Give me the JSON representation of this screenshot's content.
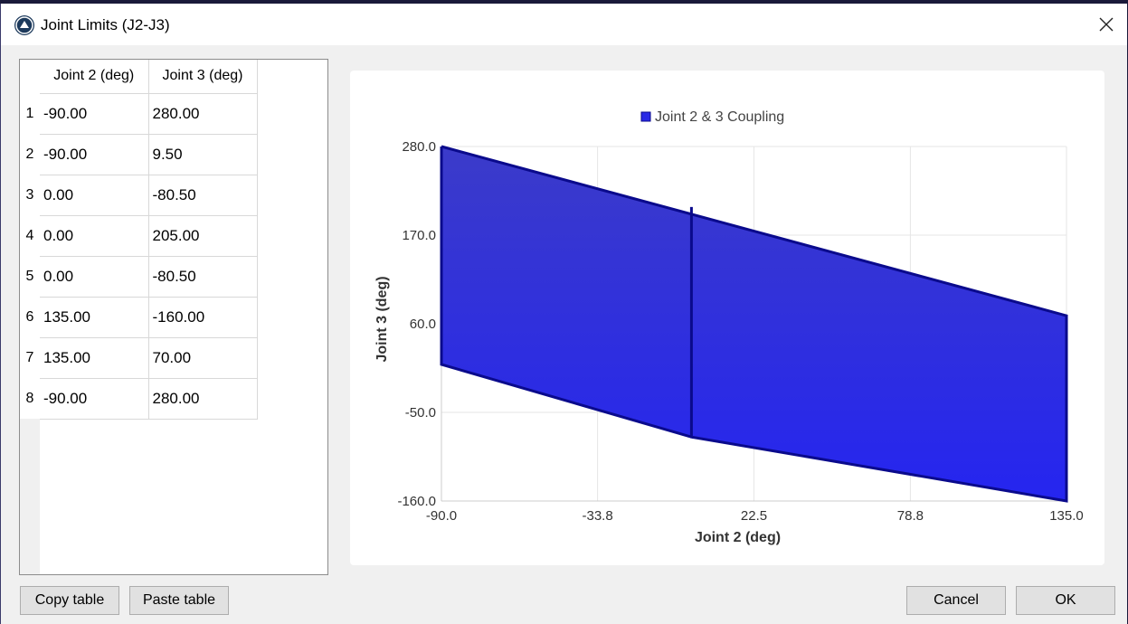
{
  "window": {
    "title": "Joint Limits (J2-J3)"
  },
  "table": {
    "columns": [
      "Joint 2 (deg)",
      "Joint 3 (deg)"
    ],
    "rows": [
      {
        "index": "1",
        "j2": "-90.00",
        "j3": "280.00"
      },
      {
        "index": "2",
        "j2": "-90.00",
        "j3": "9.50"
      },
      {
        "index": "3",
        "j2": "0.00",
        "j3": "-80.50"
      },
      {
        "index": "4",
        "j2": "0.00",
        "j3": "205.00"
      },
      {
        "index": "5",
        "j2": "0.00",
        "j3": "-80.50"
      },
      {
        "index": "6",
        "j2": "135.00",
        "j3": "-160.00"
      },
      {
        "index": "7",
        "j2": "135.00",
        "j3": "70.00"
      },
      {
        "index": "8",
        "j2": "-90.00",
        "j3": "280.00"
      }
    ]
  },
  "buttons": {
    "copy": "Copy table",
    "paste": "Paste table",
    "cancel": "Cancel",
    "ok": "OK"
  },
  "chart_data": {
    "type": "area",
    "title": "",
    "xlabel": "Joint 2 (deg)",
    "ylabel": "Joint 3 (deg)",
    "xlim": [
      -90.0,
      135.0
    ],
    "ylim": [
      -160.0,
      280.0
    ],
    "xticks": [
      "-90.0",
      "-33.8",
      "22.5",
      "78.8",
      "135.0"
    ],
    "yticks": [
      "280.0",
      "170.0",
      "60.0",
      "-50.0",
      "-160.0"
    ],
    "grid": true,
    "legend": "top-center",
    "series": [
      {
        "name": "Joint 2 & 3 Coupling",
        "x": [
          -90.0,
          -90.0,
          0.0,
          0.0,
          0.0,
          135.0,
          135.0,
          -90.0
        ],
        "y": [
          280.0,
          9.5,
          -80.5,
          205.0,
          -80.5,
          -160.0,
          70.0,
          280.0
        ]
      }
    ],
    "fill_color": "#2a2ae6",
    "line_color": "#0a0a8c"
  }
}
